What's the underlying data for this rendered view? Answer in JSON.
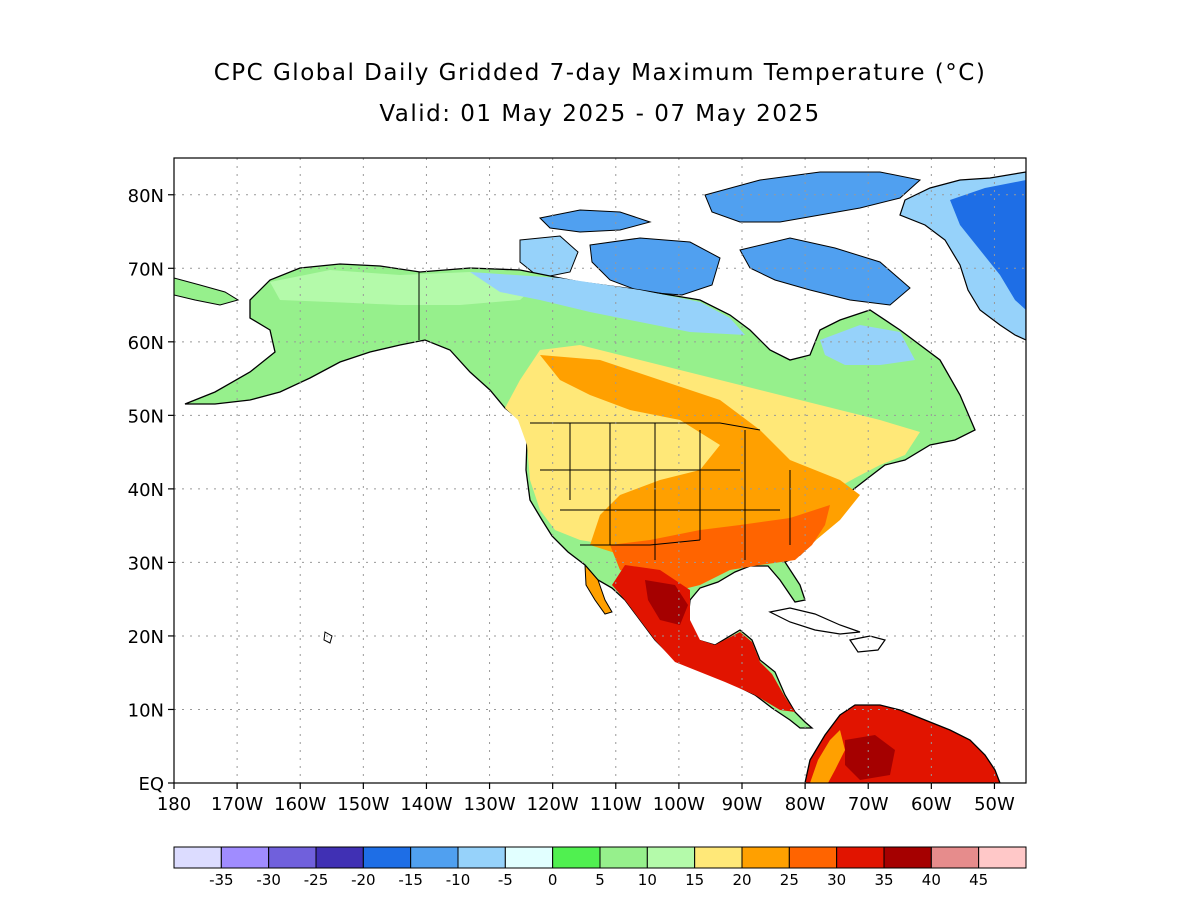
{
  "title": {
    "line1": "CPC Global Daily Gridded 7-day Maximum Temperature (°C)",
    "line2": "Valid: 01 May 2025 - 07 May 2025"
  },
  "map": {
    "lon_range": [
      -180,
      -45
    ],
    "lat_range": [
      0,
      85
    ],
    "lat_ticks": [
      "EQ",
      "10N",
      "20N",
      "30N",
      "40N",
      "50N",
      "60N",
      "70N",
      "80N"
    ],
    "lon_ticks": [
      "180",
      "170W",
      "160W",
      "150W",
      "140W",
      "130W",
      "120W",
      "110W",
      "100W",
      "90W",
      "80W",
      "70W",
      "60W",
      "50W"
    ],
    "grid": "dotted",
    "land_fill_regions": [
      {
        "region": "Greenland",
        "level": "-20 to -5"
      },
      {
        "region": "Canadian Arctic Archipelago",
        "level": "-15 to -5"
      },
      {
        "region": "Alaska / Yukon",
        "level": "0 to 15"
      },
      {
        "region": "Canadian Prairies / Central US",
        "level": "20 to 25"
      },
      {
        "region": "Southern US",
        "level": "25 to 30"
      },
      {
        "region": "Mexico",
        "level": "30 to 40"
      },
      {
        "region": "Central America",
        "level": "30 to 35"
      },
      {
        "region": "Northern South America",
        "level": "30 to 40"
      }
    ]
  },
  "colorbar": {
    "labels": [
      "-35",
      "-30",
      "-25",
      "-20",
      "-15",
      "-10",
      "-5",
      "0",
      "5",
      "10",
      "15",
      "20",
      "25",
      "30",
      "35",
      "40",
      "45"
    ],
    "colors": [
      "#dcdcff",
      "#a08cff",
      "#7060dc",
      "#4030b4",
      "#1e6ee6",
      "#50a0f0",
      "#96d2fa",
      "#e1ffff",
      "#50f050",
      "#96f08c",
      "#b4faaa",
      "#ffe878",
      "#ffa000",
      "#ff6400",
      "#e11400",
      "#a50000",
      "#e68c8c",
      "#ffc8c8"
    ]
  }
}
